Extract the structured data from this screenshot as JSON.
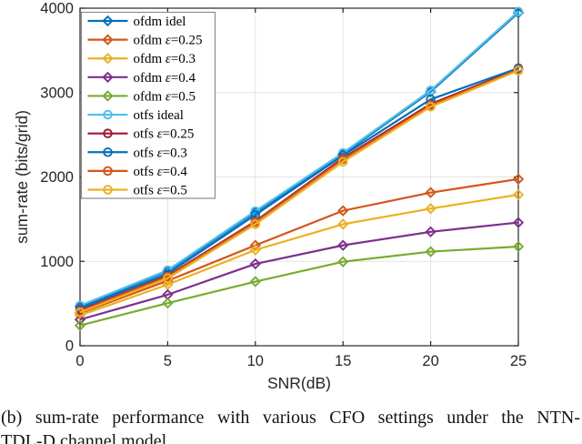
{
  "figure": {
    "caption_line1": "(b) sum-rate performance with various CFO settings under the NTN-",
    "caption_line2": "TDL-D channel model"
  },
  "chart_data": {
    "type": "line",
    "title": "",
    "xlabel": "SNR(dB)",
    "ylabel": "sum-rate (bits/grid)",
    "xlim": [
      0,
      25
    ],
    "ylim": [
      0,
      4000
    ],
    "xticks": [
      "0",
      "5",
      "10",
      "15",
      "20",
      "25"
    ],
    "yticks": [
      "0",
      "1000",
      "2000",
      "3000",
      "4000"
    ],
    "grid": true,
    "legend_position": "top-left",
    "axis_color": "#262626",
    "grid_color": "#e4e4e4",
    "legend_border_color": "#8c8c8c",
    "x": [
      0,
      5,
      10,
      15,
      20,
      25
    ],
    "series": [
      {
        "name": "ofdm idel",
        "color": "#0072BD",
        "marker": "diamond",
        "values": [
          465,
          885,
          1580,
          2270,
          3010,
          3945
        ]
      },
      {
        "name": "ofdm ε=0.25",
        "color": "#D95319",
        "marker": "diamond",
        "values": [
          385,
          770,
          1190,
          1600,
          1815,
          1975
        ]
      },
      {
        "name": "ofdm ε=0.3",
        "color": "#EDB120",
        "marker": "diamond",
        "values": [
          360,
          725,
          1135,
          1440,
          1625,
          1790
        ]
      },
      {
        "name": "ofdm ε=0.4",
        "color": "#7E2F8E",
        "marker": "diamond",
        "values": [
          310,
          605,
          970,
          1190,
          1350,
          1460
        ]
      },
      {
        "name": "ofdm ε=0.5",
        "color": "#77AC30",
        "marker": "diamond",
        "values": [
          240,
          505,
          760,
          995,
          1115,
          1175
        ]
      },
      {
        "name": "otfs ideal",
        "color": "#4DBEEE",
        "marker": "circle",
        "values": [
          475,
          895,
          1595,
          2285,
          3025,
          3960
        ]
      },
      {
        "name": "otfs ε=0.25",
        "color": "#A2142F",
        "marker": "circle",
        "values": [
          420,
          830,
          1475,
          2225,
          2865,
          3280
        ]
      },
      {
        "name": "otfs ε=0.3",
        "color": "#0072BD",
        "marker": "circle",
        "values": [
          445,
          855,
          1550,
          2255,
          2920,
          3290
        ]
      },
      {
        "name": "otfs ε=0.4",
        "color": "#D95319",
        "marker": "circle",
        "values": [
          410,
          820,
          1465,
          2210,
          2850,
          3272
        ]
      },
      {
        "name": "otfs ε=0.5",
        "color": "#EDB120",
        "marker": "circle",
        "values": [
          395,
          800,
          1440,
          2180,
          2832,
          3260
        ]
      }
    ]
  }
}
